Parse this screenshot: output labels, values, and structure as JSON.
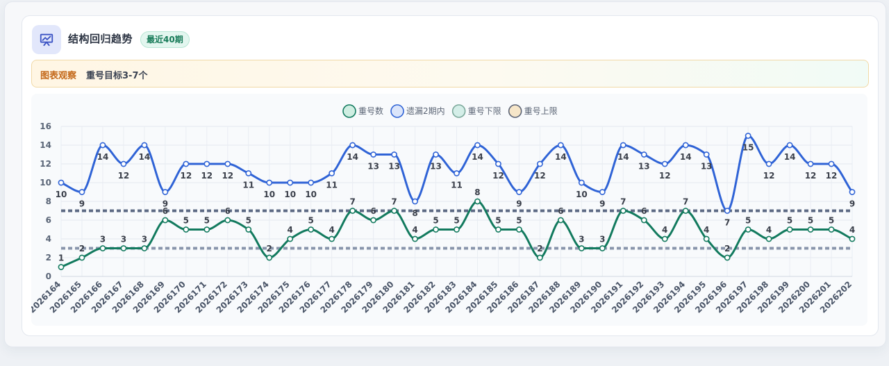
{
  "header": {
    "title": "结构回归趋势",
    "badge": "最近40期",
    "icon": "presentation-chart-icon"
  },
  "observation": {
    "label": "图表观察",
    "text": "重号目标3-7个"
  },
  "colors": {
    "blue": "#2f63d6",
    "green": "#127a5e",
    "lower": "#8995ab",
    "upper": "#5d6a84"
  },
  "chart_data": {
    "type": "line",
    "title": "",
    "xlabel": "",
    "ylabel": "",
    "ylim": [
      0,
      16
    ],
    "yticks": [
      0,
      2,
      4,
      6,
      8,
      10,
      12,
      14,
      16
    ],
    "grid": true,
    "legend_position": "top-center",
    "categories": [
      "2026164",
      "2026165",
      "2026166",
      "2026167",
      "2026168",
      "2026169",
      "2026170",
      "2026171",
      "2026172",
      "2026173",
      "2026174",
      "2026175",
      "2026176",
      "2026177",
      "2026178",
      "2026179",
      "2026180",
      "2026181",
      "2026182",
      "2026183",
      "2026184",
      "2026185",
      "2026186",
      "2026187",
      "2026188",
      "2026189",
      "2026190",
      "2026191",
      "2026192",
      "2026193",
      "2026194",
      "2026195",
      "2026196",
      "2026197",
      "2026198",
      "2026199",
      "2026200",
      "2026201",
      "2026202"
    ],
    "series": [
      {
        "name": "重号数",
        "color": "#127a5e",
        "values": [
          1,
          2,
          3,
          3,
          3,
          6,
          5,
          5,
          6,
          5,
          2,
          4,
          5,
          4,
          7,
          6,
          7,
          4,
          5,
          5,
          8,
          5,
          5,
          2,
          6,
          3,
          3,
          7,
          6,
          4,
          7,
          4,
          2,
          5,
          4,
          5,
          5,
          5,
          4
        ]
      },
      {
        "name": "遗漏2期内",
        "color": "#2f63d6",
        "values": [
          10,
          9,
          14,
          12,
          14,
          9,
          12,
          12,
          12,
          11,
          10,
          10,
          10,
          11,
          14,
          13,
          13,
          8,
          13,
          11,
          14,
          12,
          9,
          12,
          14,
          10,
          9,
          14,
          13,
          12,
          14,
          13,
          7,
          15,
          12,
          14,
          12,
          12,
          9
        ]
      },
      {
        "name": "重号下限",
        "color": "#8995ab",
        "value": 3
      },
      {
        "name": "重号上限",
        "color": "#5d6a84",
        "value": 7
      }
    ]
  }
}
